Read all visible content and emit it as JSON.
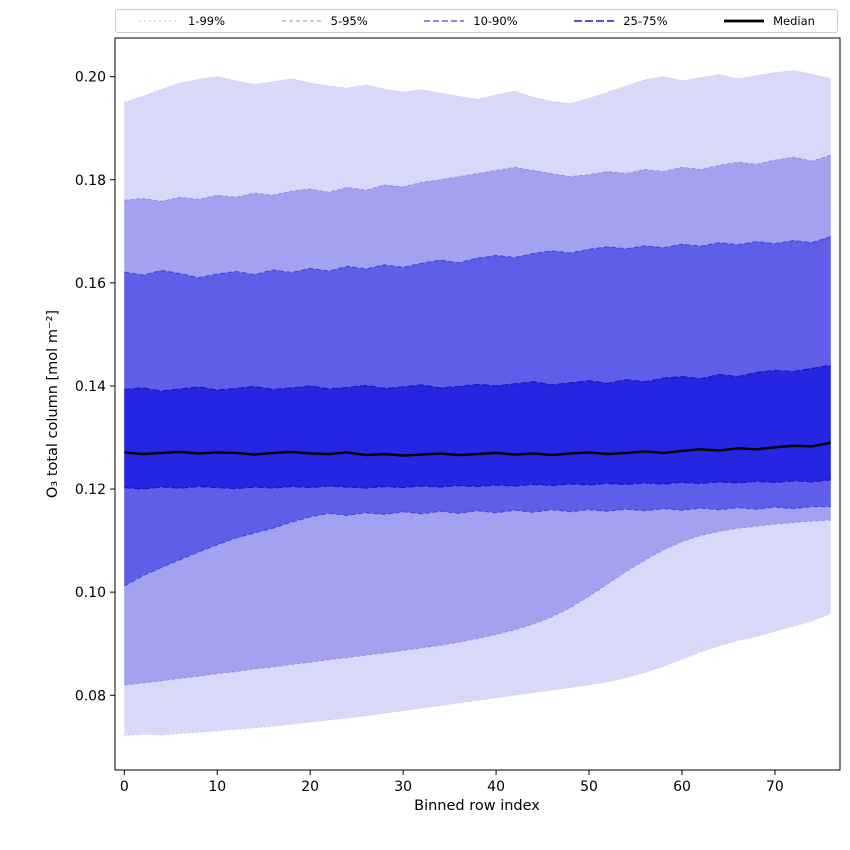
{
  "figure": {
    "background": "#ffffff"
  },
  "legend": {
    "entries": [
      {
        "label": "1-99%",
        "color": "#c2c2ee",
        "dash": "2 3",
        "width": 1.0
      },
      {
        "label": "5-95%",
        "color": "#8d8de8",
        "dash": "4 3",
        "width": 1.1
      },
      {
        "label": "10-90%",
        "color": "#4848d8",
        "dash": "6 3",
        "width": 1.3
      },
      {
        "label": "25-75%",
        "color": "#1a1ac2",
        "dash": "8 3",
        "width": 1.5
      },
      {
        "label": "Median",
        "color": "#000000",
        "dash": "",
        "width": 2.8
      }
    ]
  },
  "chart_data": {
    "type": "area",
    "title": "",
    "xlabel": "Binned row index",
    "ylabel": "O₃ total column [mol m⁻²]",
    "legend_position": "top, expanded across full width",
    "grid": false,
    "xlim": [
      -1,
      77
    ],
    "ylim": [
      0.0655,
      0.2075
    ],
    "xticks": [
      0,
      10,
      20,
      30,
      40,
      50,
      60,
      70
    ],
    "yticks": [
      0.08,
      0.1,
      0.12,
      0.14,
      0.16,
      0.18,
      0.2
    ],
    "median_style": {
      "color": "#000000",
      "width": 2.4
    },
    "bands": [
      {
        "label": "1-99%",
        "lower": "p1",
        "upper": "p99",
        "fill": "#d8d8f8",
        "edge": "#c2c2ee",
        "dash": "1.5 2.5",
        "lw": 0.8
      },
      {
        "label": "5-95%",
        "lower": "p5",
        "upper": "p95",
        "fill": "#a2a2f0",
        "edge": "#8d8de8",
        "dash": "3.5 2.5",
        "lw": 0.9
      },
      {
        "label": "10-90%",
        "lower": "p10",
        "upper": "p90",
        "fill": "#5e5ee8",
        "edge": "#4848d8",
        "dash": "5 2.5",
        "lw": 1.1
      },
      {
        "label": "25-75%",
        "lower": "p25",
        "upper": "p75",
        "fill": "#2525e2",
        "edge": "#1a1ac2",
        "dash": "7 2.5",
        "lw": 1.3
      }
    ],
    "series": {
      "x": [
        0,
        2,
        4,
        6,
        8,
        10,
        12,
        14,
        16,
        18,
        20,
        22,
        24,
        26,
        28,
        30,
        32,
        34,
        36,
        38,
        40,
        42,
        44,
        46,
        48,
        50,
        52,
        54,
        56,
        58,
        60,
        62,
        64,
        66,
        68,
        70,
        72,
        74,
        76
      ],
      "p1": [
        0.0722,
        0.0724,
        0.0723,
        0.0726,
        0.0728,
        0.0731,
        0.0734,
        0.0737,
        0.074,
        0.0744,
        0.0748,
        0.0752,
        0.0756,
        0.076,
        0.0765,
        0.077,
        0.0775,
        0.078,
        0.0785,
        0.079,
        0.0795,
        0.08,
        0.0805,
        0.081,
        0.0815,
        0.082,
        0.0826,
        0.0834,
        0.0844,
        0.0856,
        0.087,
        0.0884,
        0.0896,
        0.0906,
        0.0914,
        0.0924,
        0.0934,
        0.0944,
        0.0958
      ],
      "p5": [
        0.082,
        0.0824,
        0.0828,
        0.0833,
        0.0837,
        0.0842,
        0.0846,
        0.0851,
        0.0855,
        0.086,
        0.0864,
        0.0869,
        0.0873,
        0.0878,
        0.0882,
        0.0887,
        0.0892,
        0.0897,
        0.0903,
        0.091,
        0.0918,
        0.0927,
        0.0938,
        0.0952,
        0.097,
        0.0992,
        0.1016,
        0.104,
        0.1062,
        0.1082,
        0.1098,
        0.111,
        0.1118,
        0.1124,
        0.1128,
        0.1132,
        0.1135,
        0.1138,
        0.114
      ],
      "p10": [
        0.1012,
        0.1032,
        0.1048,
        0.1063,
        0.1078,
        0.1092,
        0.1105,
        0.1115,
        0.1124,
        0.1136,
        0.1146,
        0.1153,
        0.1149,
        0.1154,
        0.1151,
        0.1156,
        0.1152,
        0.1157,
        0.1153,
        0.1158,
        0.1154,
        0.1159,
        0.1155,
        0.116,
        0.1156,
        0.116,
        0.1157,
        0.1161,
        0.1158,
        0.1162,
        0.1159,
        0.1163,
        0.116,
        0.1164,
        0.1161,
        0.1165,
        0.1162,
        0.1166,
        0.1166
      ],
      "p25": [
        0.1203,
        0.12,
        0.1204,
        0.1202,
        0.1205,
        0.1203,
        0.1201,
        0.1204,
        0.1202,
        0.1205,
        0.1203,
        0.1206,
        0.1204,
        0.1202,
        0.1205,
        0.1203,
        0.1206,
        0.1204,
        0.1207,
        0.1205,
        0.1208,
        0.1206,
        0.1209,
        0.1207,
        0.121,
        0.1208,
        0.1211,
        0.1209,
        0.1212,
        0.121,
        0.1213,
        0.1211,
        0.1214,
        0.1212,
        0.1215,
        0.1213,
        0.1216,
        0.1214,
        0.1218
      ],
      "median": [
        0.1271,
        0.1268,
        0.127,
        0.1272,
        0.1269,
        0.1271,
        0.127,
        0.1267,
        0.127,
        0.1272,
        0.1269,
        0.1268,
        0.1271,
        0.1266,
        0.1268,
        0.1265,
        0.1267,
        0.1269,
        0.1266,
        0.1268,
        0.127,
        0.1267,
        0.1269,
        0.1266,
        0.1269,
        0.1271,
        0.1268,
        0.127,
        0.1273,
        0.127,
        0.1274,
        0.1277,
        0.1275,
        0.1279,
        0.1277,
        0.1281,
        0.1284,
        0.1283,
        0.129
      ],
      "p75": [
        0.1393,
        0.1396,
        0.139,
        0.1394,
        0.1398,
        0.1392,
        0.1395,
        0.1399,
        0.1393,
        0.1396,
        0.14,
        0.1394,
        0.1397,
        0.1401,
        0.1395,
        0.1398,
        0.1402,
        0.1396,
        0.1399,
        0.1403,
        0.14,
        0.1404,
        0.1408,
        0.1402,
        0.1406,
        0.141,
        0.1405,
        0.1412,
        0.1408,
        0.1415,
        0.1418,
        0.1414,
        0.1422,
        0.1418,
        0.1426,
        0.143,
        0.1428,
        0.1434,
        0.144
      ],
      "p90": [
        0.1621,
        0.1615,
        0.1624,
        0.1618,
        0.161,
        0.1617,
        0.1622,
        0.1616,
        0.1625,
        0.162,
        0.1628,
        0.1623,
        0.1632,
        0.1627,
        0.1635,
        0.163,
        0.1638,
        0.1644,
        0.1639,
        0.1648,
        0.1653,
        0.1649,
        0.1657,
        0.1662,
        0.1658,
        0.1665,
        0.167,
        0.1666,
        0.1672,
        0.1668,
        0.1675,
        0.1671,
        0.1678,
        0.1674,
        0.168,
        0.1676,
        0.1682,
        0.1678,
        0.169
      ],
      "p95": [
        0.176,
        0.1764,
        0.1758,
        0.1766,
        0.1762,
        0.177,
        0.1766,
        0.1774,
        0.177,
        0.1778,
        0.1782,
        0.1776,
        0.1785,
        0.178,
        0.179,
        0.1786,
        0.1795,
        0.18,
        0.1806,
        0.1812,
        0.1818,
        0.1824,
        0.1818,
        0.1812,
        0.1806,
        0.181,
        0.1816,
        0.1812,
        0.182,
        0.1816,
        0.1824,
        0.182,
        0.1828,
        0.1834,
        0.183,
        0.1838,
        0.1844,
        0.1836,
        0.1848
      ],
      "p99": [
        0.195,
        0.1962,
        0.1975,
        0.1988,
        0.1995,
        0.2,
        0.1992,
        0.1985,
        0.199,
        0.1996,
        0.1988,
        0.1982,
        0.1978,
        0.1984,
        0.1976,
        0.197,
        0.1975,
        0.1968,
        0.1962,
        0.1956,
        0.1965,
        0.1972,
        0.196,
        0.1952,
        0.1948,
        0.1958,
        0.197,
        0.1982,
        0.1994,
        0.2,
        0.1992,
        0.1998,
        0.2004,
        0.1996,
        0.2002,
        0.2008,
        0.2012,
        0.2005,
        0.1996
      ]
    }
  }
}
